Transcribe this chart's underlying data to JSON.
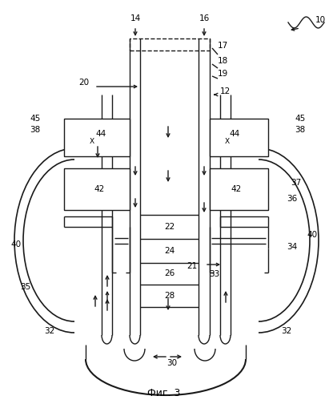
{
  "title": "Фиг. 3",
  "bg_color": "#ffffff",
  "line_color": "#1a1a1a",
  "line_width": 1.0,
  "fig_width": 4.11,
  "fig_height": 4.99,
  "dpi": 100
}
